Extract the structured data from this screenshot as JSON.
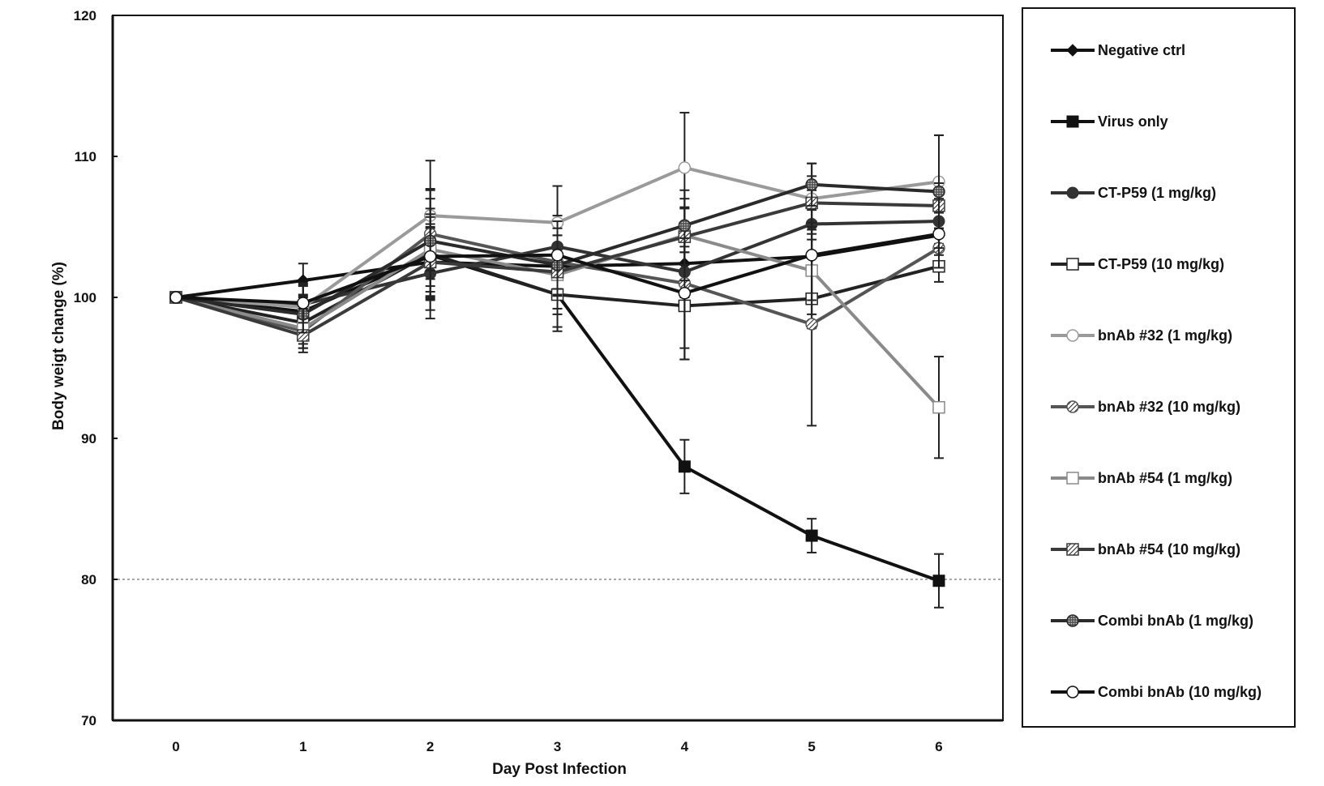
{
  "chart_data": {
    "type": "line",
    "title": "",
    "xlabel": "Day Post Infection",
    "ylabel": "Body weigt change (%)",
    "x": [
      0,
      1,
      2,
      3,
      4,
      5,
      6
    ],
    "xtick_labels": [
      "0",
      "1",
      "2",
      "3",
      "4",
      "5",
      "6"
    ],
    "ylim": [
      70,
      120
    ],
    "yticks": [
      70,
      80,
      90,
      100,
      110,
      120
    ],
    "ytick_labels": [
      "70",
      "80",
      "90",
      "100",
      "110",
      "120"
    ],
    "grid": false,
    "reference_line": {
      "y": 80,
      "style": "dotted"
    },
    "legend_position": "right-outside",
    "series": [
      {
        "name": "Negative ctrl",
        "marker": "diamond-filled",
        "color": "#111111",
        "values": [
          100,
          101.2,
          102.5,
          102.2,
          102.4,
          102.9,
          104.4
        ],
        "err": [
          0,
          1.2,
          2.5,
          1.6,
          2.0,
          1.2,
          1.1
        ]
      },
      {
        "name": "Virus only",
        "marker": "square-filled",
        "color": "#111111",
        "values": [
          100,
          99.0,
          103.0,
          100.2,
          88.0,
          83.1,
          79.9
        ],
        "err": [
          0,
          1.2,
          2.2,
          2.6,
          1.9,
          1.2,
          1.9
        ]
      },
      {
        "name": "CT-P59 (1 mg/kg)",
        "marker": "circle-filled",
        "color": "#333333",
        "values": [
          100,
          99.5,
          101.7,
          103.6,
          101.8,
          105.2,
          105.4
        ],
        "err": [
          0,
          1.4,
          3.2,
          2.2,
          1.8,
          2.4,
          1.6
        ]
      },
      {
        "name": "CT-P59 (10 mg/kg)",
        "marker": "square-open",
        "color": "#222222",
        "values": [
          100,
          98.2,
          103.1,
          100.2,
          99.4,
          99.9,
          102.2
        ],
        "err": [
          0,
          1.5,
          3.2,
          2.3,
          3.8,
          2.1,
          1.1
        ]
      },
      {
        "name": "bnAb #32 (1 mg/kg)",
        "marker": "circle-open",
        "color": "#9a9a9a",
        "values": [
          100,
          99.3,
          105.8,
          105.3,
          109.2,
          107.0,
          108.2
        ],
        "err": [
          0,
          1.5,
          3.9,
          2.6,
          3.9,
          2.5,
          3.3
        ]
      },
      {
        "name": "bnAb #32 (10 mg/kg)",
        "marker": "circle-hatched",
        "color": "#555555",
        "values": [
          100,
          97.6,
          104.5,
          102.5,
          101.0,
          98.1,
          103.5
        ],
        "err": [
          0,
          1.2,
          3.2,
          2.4,
          5.4,
          7.2,
          1.4
        ]
      },
      {
        "name": "bnAb #54 (1 mg/kg)",
        "marker": "square-open",
        "color": "#8a8a8a",
        "values": [
          100,
          97.8,
          103.4,
          101.6,
          104.4,
          101.9,
          92.2
        ],
        "err": [
          0,
          1.4,
          3.6,
          2.8,
          3.2,
          3.1,
          3.6
        ]
      },
      {
        "name": "bnAb #54 (10 mg/kg)",
        "marker": "square-hatched",
        "color": "#3a3a3a",
        "values": [
          100,
          97.3,
          102.5,
          101.8,
          104.3,
          106.7,
          106.5
        ],
        "err": [
          0,
          1.2,
          3.4,
          2.6,
          2.0,
          1.9,
          1.6
        ]
      },
      {
        "name": "Combi bnAb (1 mg/kg)",
        "marker": "circle-dotted",
        "color": "#2a2a2a",
        "values": [
          100,
          98.8,
          104.0,
          102.3,
          105.1,
          108.0,
          107.5
        ],
        "err": [
          0,
          1.3,
          3.6,
          2.1,
          1.9,
          1.5,
          4.0
        ]
      },
      {
        "name": "Combi bnAb (10 mg/kg)",
        "marker": "circle-open",
        "color": "#111111",
        "values": [
          100,
          99.6,
          102.9,
          103.0,
          100.3,
          103.0,
          104.5
        ],
        "err": [
          0,
          1.4,
          2.8,
          2.4,
          3.9,
          3.2,
          1.5
        ]
      }
    ]
  }
}
